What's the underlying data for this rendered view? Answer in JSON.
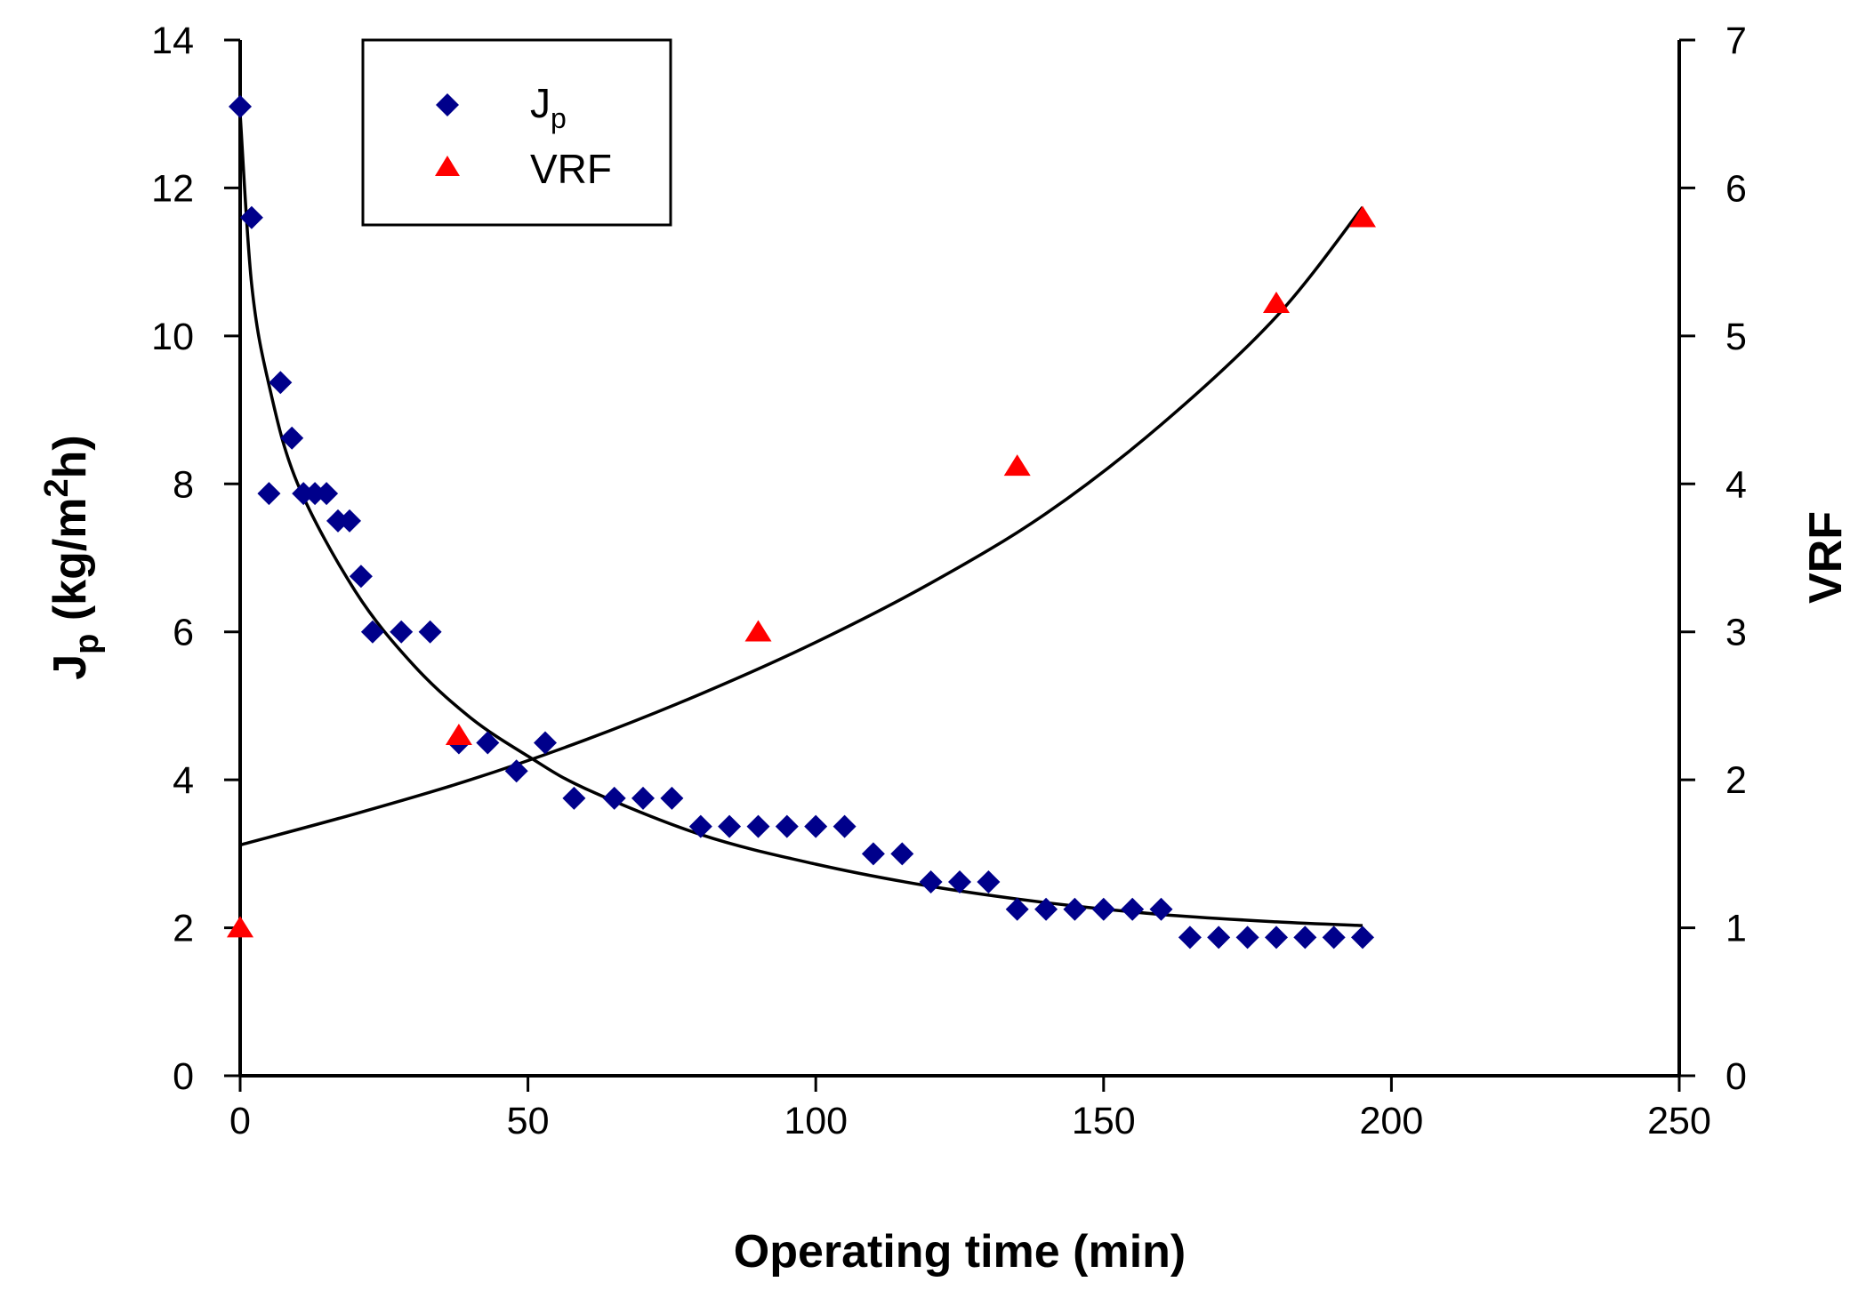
{
  "chart_data": {
    "type": "scatter",
    "x_axis": {
      "label": "Operating time (min)",
      "range": [
        0,
        250
      ],
      "ticks": [
        0,
        50,
        100,
        150,
        200,
        250
      ]
    },
    "y_left": {
      "label_main": "J",
      "label_sub": "p",
      "label_rest": " (kg/m",
      "label_sup": "2",
      "label_end": "h)",
      "range": [
        0,
        14
      ],
      "ticks": [
        0,
        2,
        4,
        6,
        8,
        10,
        12,
        14
      ]
    },
    "y_right": {
      "label": "VRF",
      "range": [
        0,
        7
      ],
      "ticks": [
        0,
        1,
        2,
        3,
        4,
        5,
        6,
        7
      ]
    },
    "legend": {
      "position": "top-left",
      "entries": [
        {
          "main": "J",
          "sub": "p",
          "marker": "diamond",
          "color": "#00008B"
        },
        {
          "main": "VRF",
          "sub": "",
          "marker": "triangle",
          "color": "#FF0000"
        }
      ]
    },
    "series": [
      {
        "name": "Jp",
        "axis": "left",
        "marker": "diamond",
        "color": "#00008B",
        "x": [
          0,
          2,
          5,
          7,
          9,
          11,
          13,
          15,
          17,
          19,
          21,
          23,
          28,
          33,
          38,
          43,
          48,
          53,
          58,
          65,
          70,
          75,
          80,
          85,
          90,
          95,
          100,
          105,
          110,
          115,
          120,
          125,
          130,
          135,
          140,
          145,
          150,
          155,
          160,
          165,
          170,
          175,
          180,
          185,
          190,
          195
        ],
        "y": [
          13.1,
          11.6,
          7.87,
          9.37,
          8.62,
          7.87,
          7.87,
          7.87,
          7.5,
          7.5,
          6.75,
          6.0,
          6.0,
          6.0,
          4.5,
          4.5,
          4.12,
          4.5,
          3.75,
          3.75,
          3.75,
          3.75,
          3.37,
          3.37,
          3.37,
          3.37,
          3.37,
          3.37,
          3.0,
          3.0,
          2.62,
          2.62,
          2.62,
          2.25,
          2.25,
          2.25,
          2.25,
          2.25,
          2.25,
          1.87,
          1.87,
          1.87,
          1.87,
          1.87,
          1.87,
          1.87
        ]
      },
      {
        "name": "VRF",
        "axis": "right",
        "marker": "triangle",
        "color": "#FF0000",
        "x": [
          0,
          38,
          90,
          135,
          180,
          195
        ],
        "y": [
          1.0,
          2.3,
          3.0,
          4.12,
          5.22,
          5.8
        ]
      }
    ],
    "fit_lines": [
      {
        "name": "Jp fit",
        "axis": "left",
        "color": "#000000",
        "x": [
          0,
          2,
          5,
          10,
          20,
          30,
          40,
          50,
          60,
          80,
          100,
          120,
          140,
          160,
          180,
          195
        ],
        "y": [
          13.0,
          10.7,
          9.34,
          8.0,
          6.55,
          5.56,
          4.84,
          4.32,
          3.88,
          3.26,
          2.86,
          2.56,
          2.34,
          2.18,
          2.08,
          2.03
        ]
      },
      {
        "name": "VRF fit",
        "axis": "right",
        "color": "#000000",
        "x": [
          0,
          20,
          40,
          60,
          80,
          100,
          120,
          140,
          160,
          180,
          195
        ],
        "y": [
          1.56,
          1.77,
          2.0,
          2.27,
          2.58,
          2.93,
          3.33,
          3.8,
          4.4,
          5.13,
          5.87
        ]
      }
    ]
  }
}
